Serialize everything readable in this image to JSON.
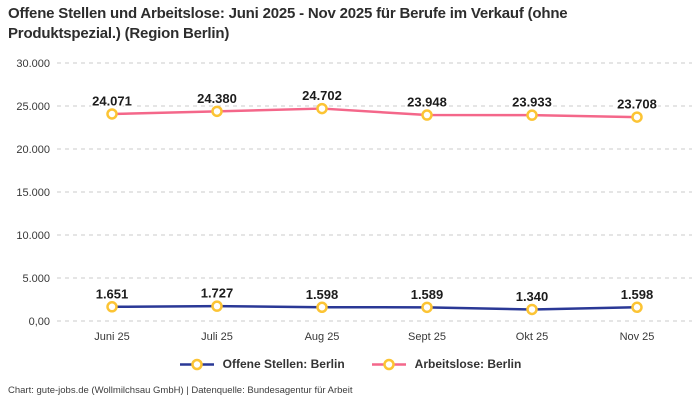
{
  "footer": {
    "credit": "Chart: gute-jobs.de (Wollmilchsau GmbH) | Datenquelle: Bundesagentur für Arbeit"
  },
  "chart_data": {
    "type": "line",
    "title": "Offene Stellen und Arbeitslose: Juni 2025 - Nov 2025 für Berufe im Verkauf (ohne Produktspezial.) (Region Berlin)",
    "categories": [
      "Juni 25",
      "Juli 25",
      "Aug 25",
      "Sept 25",
      "Okt 25",
      "Nov 25"
    ],
    "series": [
      {
        "name": "Offene Stellen: Berlin",
        "color": "#2a3896",
        "values": [
          1651,
          1727,
          1598,
          1589,
          1340,
          1598
        ],
        "labels": [
          "1.651",
          "1.727",
          "1.598",
          "1.589",
          "1.340",
          "1.598"
        ]
      },
      {
        "name": "Arbeitslose: Berlin",
        "color": "#f4678a",
        "values": [
          24071,
          24380,
          24702,
          23948,
          23933,
          23708
        ],
        "labels": [
          "24.071",
          "24.380",
          "24.702",
          "23.948",
          "23.933",
          "23.708"
        ]
      }
    ],
    "marker": {
      "fill": "#ffffff",
      "stroke": "#fcc434"
    },
    "y_ticks": [
      {
        "value": 30000,
        "label": "30.000"
      },
      {
        "value": 25000,
        "label": "25.000"
      },
      {
        "value": 20000,
        "label": "20.000"
      },
      {
        "value": 15000,
        "label": "15.000"
      },
      {
        "value": 10000,
        "label": "10.000"
      },
      {
        "value": 5000,
        "label": "5.000"
      },
      {
        "value": 0,
        "label": "0,00"
      }
    ],
    "ylim": [
      0,
      30000
    ],
    "grid": {
      "horizontal": true,
      "style": "dashed",
      "color": "#cbcbcb"
    },
    "legend_position": "bottom",
    "xlabel": "",
    "ylabel": ""
  }
}
